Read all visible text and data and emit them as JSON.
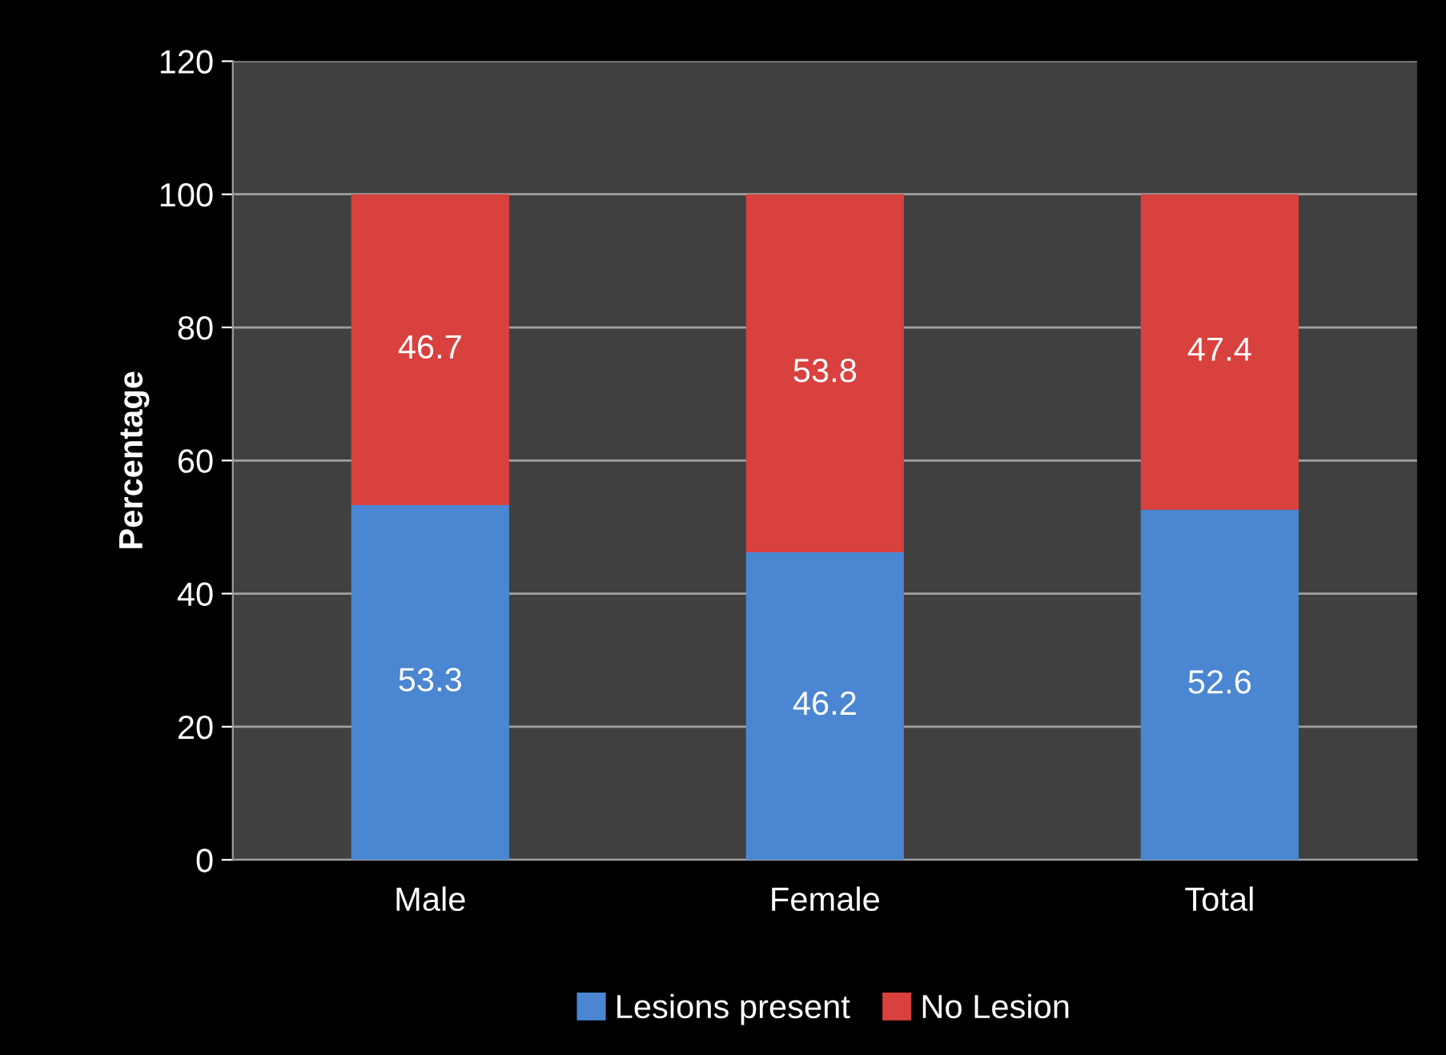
{
  "chart_data": {
    "type": "bar",
    "stacked": true,
    "ylabel": "Percentage",
    "categories": [
      "Male",
      "Female",
      "Total"
    ],
    "series": [
      {
        "name": "Lesions present",
        "color": "#4a86d2",
        "values": [
          53.3,
          46.2,
          52.6
        ]
      },
      {
        "name": "No Lesion",
        "color": "#d9413e",
        "values": [
          46.7,
          53.8,
          47.4
        ]
      }
    ],
    "ylim": [
      0,
      120
    ],
    "yticks": [
      0,
      20,
      40,
      60,
      80,
      100,
      120
    ],
    "grid": "y",
    "legend": "bottom",
    "data_labels": true
  }
}
